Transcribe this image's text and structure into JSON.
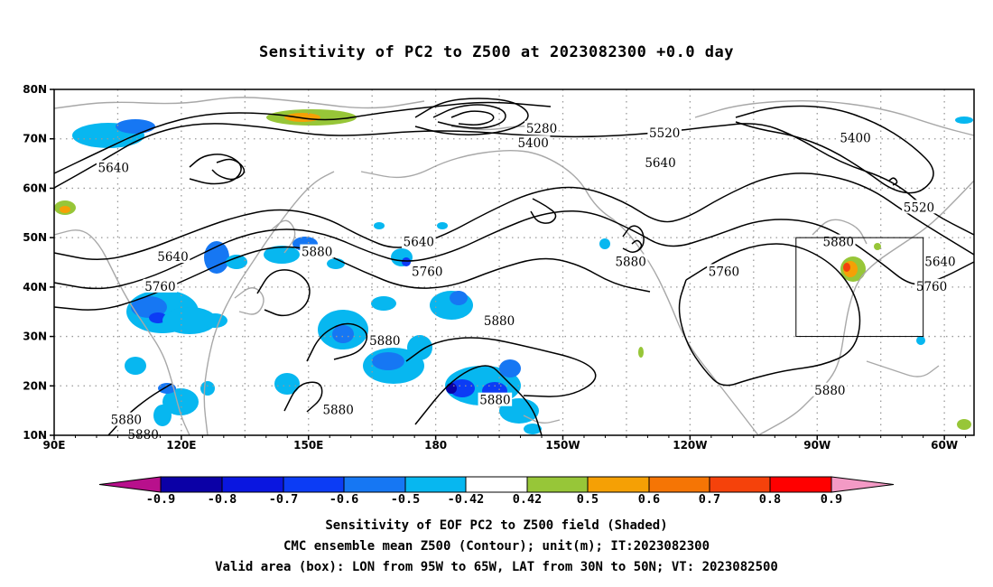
{
  "title": "Sensitivity of PC2 to Z500 at 2023082300 +0.0 day",
  "axes": {
    "lat_labels": [
      "80N",
      "70N",
      "60N",
      "50N",
      "40N",
      "30N",
      "20N",
      "10N"
    ],
    "lon_labels": [
      "90E",
      "120E",
      "150E",
      "180",
      "150W",
      "120W",
      "90W",
      "60W"
    ],
    "lon_range": [
      90,
      307
    ],
    "lat_range": [
      10,
      80
    ],
    "grid": "dotted"
  },
  "contours": {
    "unit": "m",
    "labels": [
      {
        "text": "5640",
        "lon": 104,
        "lat": 64
      },
      {
        "text": "5640",
        "lon": 118,
        "lat": 46
      },
      {
        "text": "5760",
        "lon": 115,
        "lat": 40
      },
      {
        "text": "5880",
        "lon": 152,
        "lat": 47
      },
      {
        "text": "5640",
        "lon": 176,
        "lat": 49
      },
      {
        "text": "5760",
        "lon": 178,
        "lat": 43
      },
      {
        "text": "5880",
        "lon": 226,
        "lat": 45
      },
      {
        "text": "5520",
        "lon": 234,
        "lat": 71
      },
      {
        "text": "5640",
        "lon": 233,
        "lat": 65
      },
      {
        "text": "5280",
        "lon": 205,
        "lat": 72
      },
      {
        "text": "5400",
        "lon": 203,
        "lat": 69
      },
      {
        "text": "5760",
        "lon": 248,
        "lat": 43
      },
      {
        "text": "5880",
        "lon": 275,
        "lat": 49
      },
      {
        "text": "5400",
        "lon": 279,
        "lat": 70
      },
      {
        "text": "5520",
        "lon": 294,
        "lat": 56
      },
      {
        "text": "5640",
        "lon": 299,
        "lat": 45
      },
      {
        "text": "5760",
        "lon": 297,
        "lat": 40
      },
      {
        "text": "5880",
        "lon": 195,
        "lat": 33
      },
      {
        "text": "5880",
        "lon": 168,
        "lat": 29
      },
      {
        "text": "5880",
        "lon": 194,
        "lat": 17
      },
      {
        "text": "5880",
        "lon": 157,
        "lat": 15
      },
      {
        "text": "5880",
        "lon": 107,
        "lat": 13
      },
      {
        "text": "5880",
        "lon": 273,
        "lat": 19
      },
      {
        "text": "5880",
        "lon": 111,
        "lat": 10
      }
    ]
  },
  "valid_box": {
    "lon_w": 265,
    "lon_e": 295,
    "lat_s": 30,
    "lat_n": 50
  },
  "colorbar": {
    "labels": [
      "-0.9",
      "-0.8",
      "-0.7",
      "-0.6",
      "-0.5",
      "-0.42",
      "0.42",
      "0.5",
      "0.6",
      "0.7",
      "0.8",
      "0.9"
    ],
    "colors": [
      "#b8108c",
      "#0b00a6",
      "#0a16e0",
      "#0c3cf5",
      "#1677f3",
      "#07b7f0",
      "#00d0ff",
      "#ffffff",
      "#97c638",
      "#f5a005",
      "#f57505",
      "#f5420b",
      "#ff0000",
      "#f39ac5"
    ]
  },
  "captions": [
    "Sensitivity of EOF PC2 to Z500 field (Shaded)",
    "CMC ensemble mean Z500 (Contour); unit(m); IT:2023082300",
    "Valid area (box): LON from 95W to 65W, LAT from 30N to 50N; VT: 2023082500"
  ]
}
